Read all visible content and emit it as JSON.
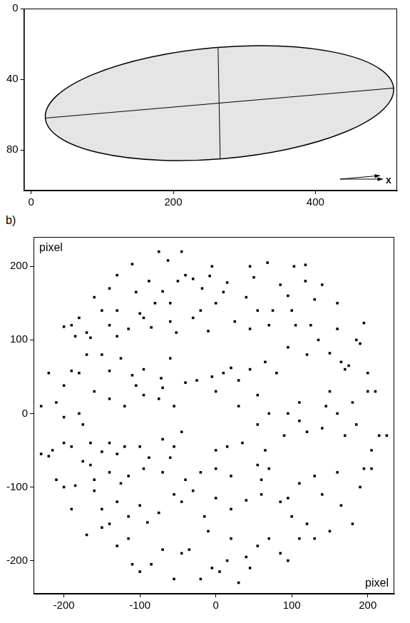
{
  "chart_data": [
    {
      "type": "scatter",
      "xlim": [
        -10,
        515
      ],
      "xticks": [
        0,
        200,
        400
      ],
      "ylim": [
        103,
        0
      ],
      "yticks": [
        0,
        40,
        80
      ],
      "grid": false,
      "ellipse": {
        "major_axis": [
          [
            20,
            62
          ],
          [
            510,
            45
          ]
        ],
        "minor_axis": [
          [
            263,
            22
          ],
          [
            266,
            85
          ]
        ]
      },
      "annotations": [
        "x"
      ]
    },
    {
      "type": "scatter",
      "title": "b)",
      "annotations": [
        "pixel",
        "pixel"
      ],
      "xlim": [
        -240,
        235
      ],
      "xticks": [
        -200,
        -100,
        0,
        100,
        200
      ],
      "ylim": [
        -245,
        240
      ],
      "yticks": [
        -200,
        -100,
        0,
        100,
        200
      ],
      "grid": false,
      "series": [
        {
          "color": "#000000",
          "marker": "square",
          "x": [
            -75,
            -45,
            -110,
            -63,
            -5,
            45,
            68,
            103,
            118,
            -40,
            -130,
            -88,
            -160,
            -140,
            -105,
            -80,
            -50,
            -30,
            -8,
            15,
            50,
            40,
            10,
            -18,
            -70,
            85,
            95,
            118,
            140,
            160,
            130,
            -150,
            -170,
            -60,
            -200,
            -190,
            -185,
            -180,
            -130,
            -100,
            -95,
            -85,
            -60,
            -52,
            -30,
            -20,
            -10,
            25,
            45,
            70,
            75,
            100,
            105,
            125,
            160,
            185,
            195,
            -165,
            -140,
            -115,
            0,
            55,
            -220,
            -200,
            -190,
            -180,
            -170,
            -150,
            -140,
            -125,
            -110,
            -95,
            -72,
            -60,
            -40,
            -25,
            -5,
            10,
            20,
            30,
            45,
            65,
            80,
            95,
            120,
            135,
            150,
            165,
            170,
            175,
            200,
            210,
            190,
            -130,
            -230,
            -210,
            -200,
            -180,
            -160,
            -140,
            -120,
            -105,
            -75,
            -55,
            -70,
            0,
            30,
            55,
            70,
            95,
            110,
            145,
            160,
            180,
            200,
            225,
            -95,
            150,
            -215,
            -220,
            -200,
            -190,
            -175,
            -165,
            -150,
            -140,
            -130,
            -120,
            -100,
            -88,
            -70,
            -55,
            -45,
            0,
            15,
            35,
            65,
            90,
            110,
            120,
            140,
            170,
            185,
            205,
            215,
            55,
            -230,
            -210,
            -185,
            -175,
            -165,
            -160,
            -140,
            -125,
            -115,
            -95,
            -70,
            -40,
            -20,
            0,
            20,
            55,
            60,
            70,
            110,
            130,
            160,
            195,
            205,
            190,
            -60,
            -200,
            -190,
            -160,
            -150,
            -130,
            -115,
            -100,
            -75,
            -55,
            -45,
            -30,
            -15,
            0,
            20,
            40,
            60,
            85,
            95,
            140,
            165,
            180,
            120,
            -140,
            -90,
            -170,
            -150,
            -130,
            -115,
            -100,
            -85,
            -70,
            -55,
            -45,
            -35,
            -20,
            -5,
            5,
            15,
            30,
            40,
            45,
            55,
            70,
            85,
            95,
            110,
            130,
            150,
            100,
            20,
            -10,
            -110
          ],
          "y": [
            220,
            220,
            203,
            208,
            200,
            200,
            205,
            200,
            202,
            188,
            188,
            180,
            158,
            170,
            165,
            150,
            180,
            183,
            187,
            178,
            185,
            158,
            165,
            170,
            166,
            175,
            160,
            180,
            175,
            150,
            155,
            140,
            110,
            150,
            118,
            120,
            105,
            130,
            140,
            136,
            130,
            117,
            125,
            110,
            130,
            140,
            112,
            125,
            115,
            120,
            140,
            140,
            120,
            120,
            115,
            100,
            123,
            103,
            120,
            115,
            150,
            140,
            55,
            38,
            58,
            55,
            80,
            80,
            58,
            75,
            52,
            60,
            48,
            75,
            42,
            45,
            50,
            55,
            62,
            45,
            60,
            70,
            55,
            90,
            80,
            100,
            82,
            70,
            60,
            65,
            55,
            30,
            95,
            105,
            10,
            15,
            -5,
            0,
            30,
            20,
            10,
            38,
            20,
            10,
            35,
            30,
            10,
            25,
            0,
            0,
            15,
            10,
            0,
            15,
            30,
            -30,
            25,
            30,
            -50,
            -58,
            -40,
            -45,
            -15,
            -40,
            -52,
            -40,
            -55,
            -45,
            -45,
            -60,
            -35,
            -45,
            -25,
            -50,
            -45,
            -40,
            -50,
            -30,
            -10,
            -25,
            -20,
            -30,
            -15,
            -50,
            -30,
            -15,
            -55,
            -90,
            -98,
            -65,
            -70,
            -90,
            -80,
            -95,
            -85,
            -75,
            -80,
            -90,
            -80,
            -75,
            -85,
            -70,
            -90,
            -75,
            -95,
            -85,
            -80,
            -75,
            -75,
            -100,
            -60,
            -100,
            -130,
            -105,
            -130,
            -120,
            -140,
            -125,
            -135,
            -110,
            -120,
            -105,
            -140,
            -115,
            -130,
            -118,
            -110,
            -120,
            -115,
            -110,
            -125,
            -150,
            -150,
            -150,
            -148,
            -165,
            -155,
            -180,
            -170,
            -215,
            -205,
            -185,
            -225,
            -190,
            -185,
            -225,
            -210,
            -215,
            -200,
            -230,
            -195,
            -210,
            -180,
            -170,
            -190,
            -200,
            -170,
            -170,
            -160,
            -140,
            -170,
            -160,
            -205
          ]
        }
      ]
    }
  ]
}
